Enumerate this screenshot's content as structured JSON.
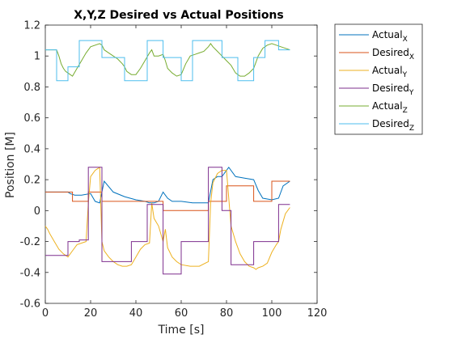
{
  "chart_data": {
    "type": "line",
    "title": "X,Y,Z Desired vs Actual Positions",
    "xlabel": "Time [s]",
    "ylabel": "Position [M]",
    "xlim": [
      0,
      120
    ],
    "ylim": [
      -0.6,
      1.2
    ],
    "xticks": [
      0,
      20,
      40,
      60,
      80,
      100,
      120
    ],
    "yticks": [
      -0.6,
      -0.4,
      -0.2,
      0,
      0.2,
      0.4,
      0.6,
      0.8,
      1,
      1.2
    ],
    "tick_labels_x": [
      "0",
      "20",
      "40",
      "60",
      "80",
      "100",
      "120"
    ],
    "tick_labels_y": [
      "-0.6",
      "-0.4",
      "-0.2",
      "0",
      "0.2",
      "0.4",
      "0.6",
      "0.8",
      "1",
      "1.2"
    ],
    "grid": false,
    "legend_position": "outside-top-right",
    "series": [
      {
        "name": "Actual",
        "sub": "X",
        "color": "#0072BD",
        "style": "solid",
        "x": [
          0,
          2,
          5,
          8,
          10,
          11,
          13,
          16,
          20,
          22,
          24,
          26,
          30,
          35,
          40,
          44,
          46,
          48,
          50,
          52,
          54,
          56,
          60,
          65,
          70,
          72,
          74,
          76,
          78,
          80,
          81,
          84,
          88,
          92,
          94,
          96,
          100,
          103,
          105,
          108
        ],
        "y": [
          0.12,
          0.12,
          0.12,
          0.12,
          0.12,
          0.11,
          0.1,
          0.1,
          0.11,
          0.06,
          0.05,
          0.19,
          0.12,
          0.09,
          0.07,
          0.06,
          0.05,
          0.05,
          0.06,
          0.12,
          0.08,
          0.06,
          0.06,
          0.05,
          0.05,
          0.05,
          0.2,
          0.22,
          0.22,
          0.26,
          0.28,
          0.22,
          0.21,
          0.2,
          0.13,
          0.08,
          0.07,
          0.08,
          0.16,
          0.19
        ]
      },
      {
        "name": "Desired",
        "sub": "X",
        "color": "#D95319",
        "style": "step",
        "x": [
          0,
          12,
          19,
          25,
          46,
          52,
          72,
          80,
          92,
          100,
          108
        ],
        "y": [
          0.12,
          0.06,
          0.12,
          0.06,
          0.06,
          0.0,
          0.06,
          0.16,
          0.06,
          0.19,
          0.19
        ]
      },
      {
        "name": "Actual",
        "sub": "Y",
        "color": "#EDB120",
        "style": "solid",
        "x": [
          0,
          1,
          2,
          4,
          6,
          8,
          10,
          12,
          14,
          16,
          18,
          19,
          20,
          22,
          24,
          25,
          26,
          28,
          30,
          32,
          34,
          36,
          38,
          40,
          42,
          44,
          46,
          47,
          48,
          50,
          52,
          53,
          54,
          56,
          58,
          60,
          64,
          68,
          72,
          73,
          74,
          76,
          78,
          80,
          82,
          84,
          86,
          88,
          90,
          92,
          93,
          94,
          96,
          98,
          100,
          102,
          103,
          104,
          106,
          108
        ],
        "y": [
          -0.1,
          -0.12,
          -0.15,
          -0.2,
          -0.25,
          -0.28,
          -0.3,
          -0.26,
          -0.22,
          -0.21,
          -0.2,
          0.05,
          0.22,
          0.26,
          0.28,
          -0.2,
          -0.26,
          -0.3,
          -0.33,
          -0.35,
          -0.36,
          -0.36,
          -0.35,
          -0.3,
          -0.25,
          -0.22,
          -0.21,
          0.05,
          -0.05,
          -0.1,
          -0.2,
          -0.12,
          -0.24,
          -0.3,
          -0.33,
          -0.35,
          -0.36,
          -0.36,
          -0.33,
          0.05,
          0.18,
          0.24,
          0.26,
          0.26,
          -0.1,
          -0.2,
          -0.28,
          -0.33,
          -0.36,
          -0.37,
          -0.38,
          -0.37,
          -0.36,
          -0.34,
          -0.27,
          -0.22,
          -0.2,
          -0.12,
          -0.02,
          0.02
        ]
      },
      {
        "name": "Desired",
        "sub": "Y",
        "color": "#7E2F8E",
        "style": "step",
        "x": [
          0,
          10,
          15,
          19,
          25,
          30,
          38,
          45,
          52,
          60,
          64,
          72,
          78,
          82,
          92,
          97,
          103,
          108
        ],
        "y": [
          -0.29,
          -0.2,
          -0.19,
          0.28,
          -0.33,
          -0.33,
          -0.2,
          0.04,
          -0.41,
          -0.2,
          -0.2,
          0.28,
          0.0,
          -0.35,
          -0.2,
          -0.2,
          0.04,
          0.04
        ]
      },
      {
        "name": "Actual",
        "sub": "Z",
        "color": "#77AC30",
        "style": "solid",
        "x": [
          0,
          2,
          5,
          6,
          7,
          8,
          9,
          10,
          12,
          14,
          16,
          18,
          20,
          24,
          25,
          26,
          28,
          30,
          32,
          34,
          35,
          36,
          38,
          40,
          42,
          44,
          46,
          47,
          48,
          50,
          52,
          53,
          54,
          56,
          58,
          60,
          62,
          64,
          66,
          68,
          70,
          72,
          73,
          74,
          76,
          78,
          80,
          82,
          84,
          86,
          88,
          90,
          92,
          93,
          94,
          96,
          98,
          100,
          102,
          104,
          106,
          108
        ],
        "y": [
          1.04,
          1.04,
          1.04,
          1.0,
          0.95,
          0.92,
          0.9,
          0.89,
          0.87,
          0.92,
          0.97,
          1.02,
          1.06,
          1.08,
          1.07,
          1.04,
          1.02,
          1.0,
          0.98,
          0.95,
          0.93,
          0.9,
          0.88,
          0.88,
          0.92,
          0.97,
          1.02,
          1.04,
          1.0,
          1.0,
          1.01,
          0.97,
          0.92,
          0.89,
          0.87,
          0.88,
          0.95,
          1.0,
          1.01,
          1.02,
          1.03,
          1.06,
          1.08,
          1.06,
          1.03,
          1.0,
          0.97,
          0.94,
          0.89,
          0.87,
          0.87,
          0.89,
          0.92,
          0.96,
          1.0,
          1.05,
          1.07,
          1.08,
          1.07,
          1.06,
          1.05,
          1.04
        ]
      },
      {
        "name": "Desired",
        "sub": "Z",
        "color": "#4DBEEE",
        "style": "step",
        "x": [
          0,
          5,
          10,
          15,
          25,
          35,
          40,
          45,
          52,
          60,
          65,
          72,
          78,
          85,
          92,
          97,
          103,
          108
        ],
        "y": [
          1.04,
          0.84,
          0.93,
          1.1,
          0.99,
          0.84,
          0.84,
          1.1,
          0.99,
          0.84,
          1.1,
          1.1,
          0.99,
          0.84,
          0.99,
          1.1,
          1.04,
          1.04
        ]
      }
    ]
  }
}
